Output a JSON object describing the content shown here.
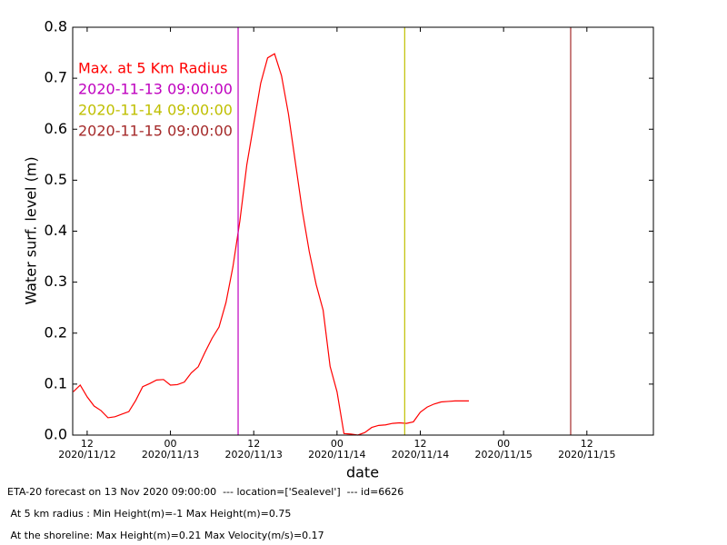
{
  "chart_data": {
    "type": "line",
    "xlabel": "date",
    "ylabel": "Water surf. level (m)",
    "xlim": [
      "2020-11-12 09:55",
      "2020-11-15 21:35"
    ],
    "ylim": [
      0,
      0.8
    ],
    "yticks": [
      {
        "value": 0,
        "label": "0.0"
      },
      0.1,
      0.2,
      0.3,
      0.4,
      0.5,
      0.6,
      0.7,
      0.8
    ],
    "xticks": [
      {
        "value": "2020-11-12 12:00",
        "label": "12",
        "date": "2020/11/12"
      },
      {
        "value": "2020-11-13 00:00",
        "label": "00",
        "date": "2020/11/13"
      },
      {
        "value": "2020-11-13 12:00",
        "label": "12",
        "date": "2020/11/13"
      },
      {
        "value": "2020-11-14 00:00",
        "label": "00",
        "date": "2020/11/14"
      },
      {
        "value": "2020-11-14 12:00",
        "label": "12",
        "date": "2020/11/14"
      },
      {
        "value": "2020-11-15 00:00",
        "label": "00",
        "date": "2020/11/15"
      },
      {
        "value": "2020-11-15 12:00",
        "label": "12",
        "date": "2020/11/15"
      }
    ],
    "x": [
      "2020-11-12 10:00",
      "2020-11-12 11:00",
      "2020-11-12 12:00",
      "2020-11-12 13:00",
      "2020-11-12 14:00",
      "2020-11-12 15:00",
      "2020-11-12 16:00",
      "2020-11-12 17:00",
      "2020-11-12 18:00",
      "2020-11-12 19:00",
      "2020-11-12 20:00",
      "2020-11-12 21:00",
      "2020-11-12 22:00",
      "2020-11-12 23:00",
      "2020-11-13 00:00",
      "2020-11-13 01:00",
      "2020-11-13 02:00",
      "2020-11-13 03:00",
      "2020-11-13 04:00",
      "2020-11-13 05:00",
      "2020-11-13 06:00",
      "2020-11-13 07:00",
      "2020-11-13 08:00",
      "2020-11-13 09:00",
      "2020-11-13 10:00",
      "2020-11-13 11:00",
      "2020-11-13 12:00",
      "2020-11-13 13:00",
      "2020-11-13 14:00",
      "2020-11-13 15:00",
      "2020-11-13 16:00",
      "2020-11-13 17:00",
      "2020-11-13 18:00",
      "2020-11-13 19:00",
      "2020-11-13 20:00",
      "2020-11-13 21:00",
      "2020-11-13 22:00",
      "2020-11-13 23:00",
      "2020-11-14 00:00",
      "2020-11-14 01:00",
      "2020-11-14 02:00",
      "2020-11-14 03:00",
      "2020-11-14 04:00",
      "2020-11-14 05:00",
      "2020-11-14 06:00",
      "2020-11-14 07:00",
      "2020-11-14 08:00",
      "2020-11-14 09:00",
      "2020-11-14 10:00",
      "2020-11-14 11:00",
      "2020-11-14 12:00",
      "2020-11-14 13:00",
      "2020-11-14 14:00",
      "2020-11-14 15:00",
      "2020-11-14 16:00",
      "2020-11-14 17:00",
      "2020-11-14 18:00",
      "2020-11-14 19:00"
    ],
    "series": [
      {
        "name": "Max. at 5 Km Radius",
        "color": "#ff0000",
        "values": [
          0.085,
          0.098,
          0.075,
          0.057,
          0.048,
          0.034,
          0.036,
          0.041,
          0.046,
          0.068,
          0.095,
          0.101,
          0.108,
          0.109,
          0.098,
          0.099,
          0.104,
          0.122,
          0.134,
          0.163,
          0.19,
          0.212,
          0.26,
          0.33,
          0.42,
          0.53,
          0.61,
          0.69,
          0.74,
          0.748,
          0.705,
          0.63,
          0.535,
          0.44,
          0.36,
          0.295,
          0.245,
          0.135,
          0.085,
          0.003,
          0.002,
          0.0,
          0.005,
          0.015,
          0.019,
          0.02,
          0.023,
          0.024,
          0.023,
          0.026,
          0.045,
          0.055,
          0.061,
          0.065,
          0.066,
          0.067,
          0.067,
          0.067
        ]
      }
    ],
    "vlines": [
      {
        "name": "2020-11-13 09:00:00",
        "color": "#bf00bf",
        "x": "2020-11-13 09:45"
      },
      {
        "name": "2020-11-14 09:00:00",
        "color": "#bfbf00",
        "x": "2020-11-14 09:45"
      },
      {
        "name": "2020-11-15 09:00:00",
        "color": "#a52a2a",
        "x": "2020-11-15 09:40"
      }
    ],
    "notes": [
      "ETA-20 forecast on 13 Nov 2020 09:00:00  --- location=['Sealevel']  --- id=6626",
      " At 5 km radius : Min Height(m)=-1 Max Height(m)=0.75",
      " At the shoreline: Max Height(m)=0.21 Max Velocity(m/s)=0.17"
    ]
  }
}
